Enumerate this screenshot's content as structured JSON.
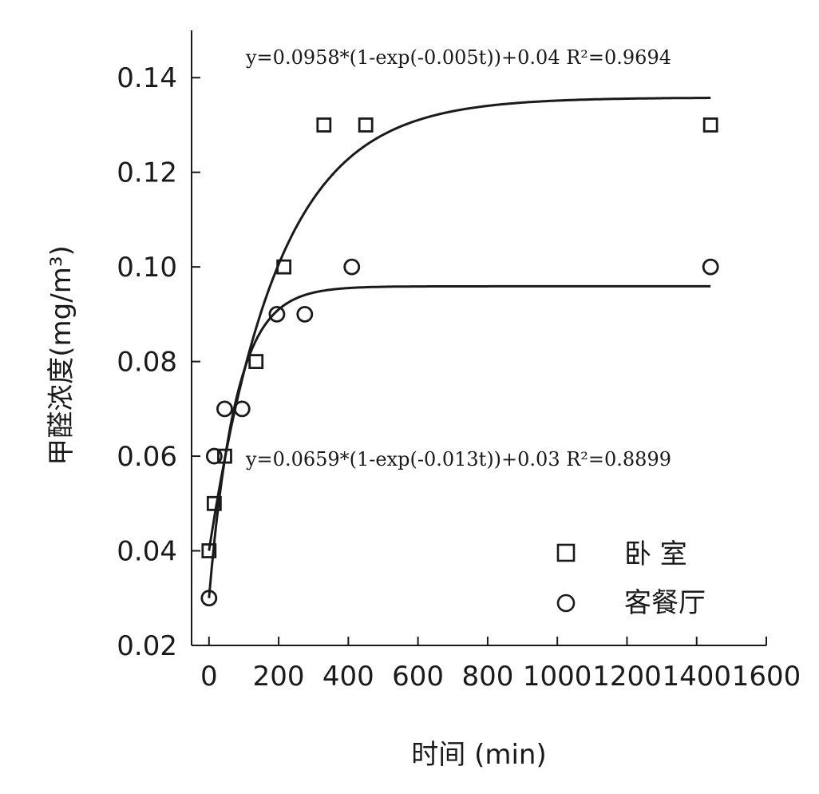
{
  "chart_data": {
    "type": "scatter",
    "title": "",
    "xlabel": "时间  (min)",
    "ylabel": "甲醛浓度(mg/m³)",
    "xlim": [
      -50,
      1600
    ],
    "ylim": [
      0.02,
      0.15
    ],
    "x_ticks": [
      0,
      200,
      400,
      600,
      800,
      1000,
      1200,
      1400,
      1600
    ],
    "y_ticks": [
      0.02,
      0.04,
      0.06,
      0.08,
      0.1,
      0.12,
      0.14
    ],
    "x_tick_labels": [
      "0",
      "200",
      "400",
      "600",
      "800",
      "1000",
      "1200",
      "1400",
      "1600"
    ],
    "y_tick_labels": [
      "0.02",
      "0.04",
      "0.06",
      "0.08",
      "0.10",
      "0.12",
      "0.14"
    ],
    "grid": false,
    "legend_position": "bottom-right",
    "series": [
      {
        "name": "卧 室",
        "marker": "square",
        "points": [
          [
            0,
            0.04
          ],
          [
            15,
            0.05
          ],
          [
            45,
            0.06
          ],
          [
            135,
            0.08
          ],
          [
            215,
            0.1
          ],
          [
            330,
            0.13
          ],
          [
            450,
            0.13
          ],
          [
            1440,
            0.13
          ]
        ],
        "fit": {
          "equation": "y=0.0958*(1-exp(-0.005t))+0.04   R²=0.9694",
          "a": 0.0958,
          "k": 0.005,
          "c": 0.04
        }
      },
      {
        "name": "客餐厅",
        "marker": "circle",
        "points": [
          [
            0,
            0.03
          ],
          [
            15,
            0.06
          ],
          [
            45,
            0.07
          ],
          [
            95,
            0.07
          ],
          [
            195,
            0.09
          ],
          [
            275,
            0.09
          ],
          [
            410,
            0.1
          ],
          [
            1440,
            0.1
          ]
        ],
        "fit": {
          "equation": "y=0.0659*(1-exp(-0.013t))+0.03   R²=0.8899",
          "a": 0.0659,
          "k": 0.013,
          "c": 0.03
        }
      }
    ]
  }
}
